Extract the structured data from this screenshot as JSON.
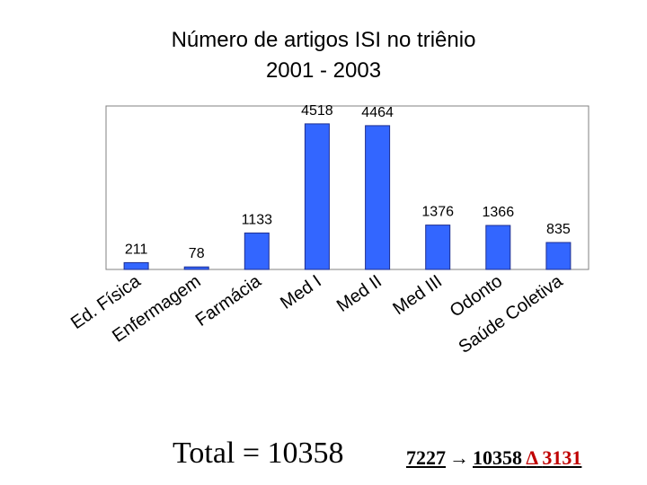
{
  "title": {
    "line1": "Número de artigos ISI no triênio",
    "line2": "2001 - 2003"
  },
  "chart_data": {
    "type": "bar",
    "categories": [
      "Ed. Física",
      "Enfermagem",
      "Farmácia",
      "Med I",
      "Med II",
      "Med III",
      "Odonto",
      "Saúde Coletiva"
    ],
    "values": [
      211,
      78,
      1133,
      4518,
      4464,
      1376,
      1366,
      835
    ],
    "ylim": [
      0,
      4600
    ],
    "grid": false,
    "bar_color": "#3366ff"
  },
  "footer": {
    "total": "Total = 10358",
    "from": "7227",
    "arrow_icon": "right-arrow-icon",
    "to": "10358",
    "delta_symbol": "Δ",
    "delta_value": "3131"
  }
}
